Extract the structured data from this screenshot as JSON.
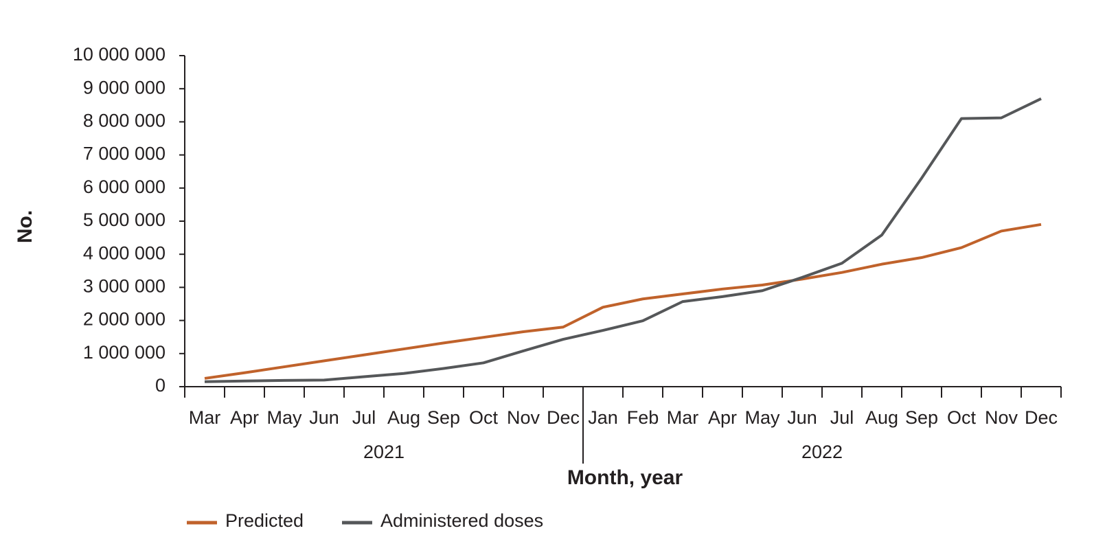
{
  "chart_data": {
    "type": "line",
    "x_label": "Month, year",
    "y_label": "No.",
    "categories": [
      "Mar",
      "Apr",
      "May",
      "Jun",
      "Jul",
      "Aug",
      "Sep",
      "Oct",
      "Nov",
      "Dec",
      "Jan",
      "Feb",
      "Mar",
      "Apr",
      "May",
      "Jun",
      "Jul",
      "Aug",
      "Sep",
      "Oct",
      "Nov",
      "Dec"
    ],
    "x_groups": [
      {
        "label": "2021",
        "span": 10
      },
      {
        "label": "2022",
        "span": 12
      }
    ],
    "series": [
      {
        "name": "Predicted",
        "color": "#c0622b",
        "values": [
          250000,
          420000,
          600000,
          780000,
          960000,
          1140000,
          1320000,
          1490000,
          1660000,
          1800000,
          2400000,
          2650000,
          2800000,
          2950000,
          3070000,
          3250000,
          3450000,
          3700000,
          3900000,
          4200000,
          4700000,
          4900000
        ]
      },
      {
        "name": "Administered doses",
        "color": "#555759",
        "values": [
          150000,
          170000,
          190000,
          200000,
          300000,
          400000,
          550000,
          720000,
          1080000,
          1430000,
          1700000,
          1990000,
          2570000,
          2720000,
          2900000,
          3300000,
          3730000,
          4580000,
          6300000,
          8100000,
          8120000,
          8700000
        ]
      }
    ],
    "ylim": [
      0,
      10000000
    ],
    "yticks": [
      {
        "value": 0,
        "label": "0"
      },
      {
        "value": 1000000,
        "label": "1 000 000"
      },
      {
        "value": 2000000,
        "label": "2 000 000"
      },
      {
        "value": 3000000,
        "label": "3 000 000"
      },
      {
        "value": 4000000,
        "label": "4 000 000"
      },
      {
        "value": 5000000,
        "label": "5 000 000"
      },
      {
        "value": 6000000,
        "label": "6 000 000"
      },
      {
        "value": 7000000,
        "label": "7 000 000"
      },
      {
        "value": 8000000,
        "label": "8 000 000"
      },
      {
        "value": 9000000,
        "label": "9 000 000"
      },
      {
        "value": 10000000,
        "label": "10 000 000"
      }
    ],
    "grid": false,
    "legend": "bottom"
  }
}
